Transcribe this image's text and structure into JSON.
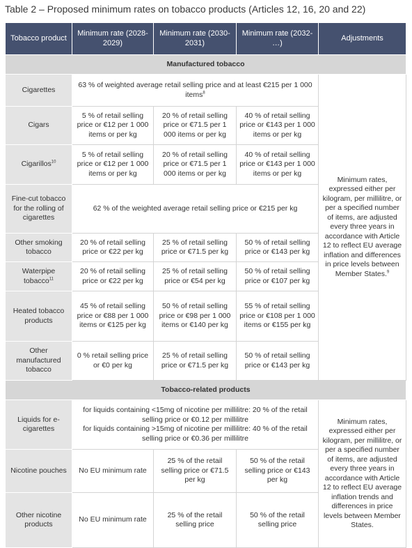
{
  "title": "Table 2 – Proposed minimum rates on tobacco products (Articles 12, 16, 20 and 22)",
  "table": {
    "header": [
      "Tobacco product",
      "Minimum rate (2028-2029)",
      "Minimum rate (2030-2031)",
      "Minimum rate (2032- …)",
      "Adjustments"
    ],
    "sections": [
      {
        "heading": "Manufactured tobacco",
        "adjustments": "Minimum rates, expressed either per kilogram, per millilitre, or per a specified number of items, are adjusted every three years in accordance with Article 12 to reflect EU average inflation and differences in price levels between Member States.",
        "adjustments_note": "9",
        "rows": [
          {
            "product": "Cigarettes",
            "cells": [
              {
                "text": [
                  "63 % of weighted average retail selling price and at least €215 per 1 000 items"
                ],
                "note": "8"
              }
            ]
          },
          {
            "product": "Cigars",
            "cells": [
              {
                "text": [
                  "5 % of retail selling price or €12 per 1 000 items or per kg"
                ]
              },
              {
                "text": [
                  "20 % of retail selling price or €71.5 per 1 000 items or per kg"
                ]
              },
              {
                "text": [
                  "40 % of retail selling price or €143 per 1 000 items or per kg"
                ]
              }
            ]
          },
          {
            "product": "Cigarillos",
            "product_note": "10",
            "cells": [
              {
                "text": [
                  "5 % of retail selling price or €12 per 1 000 items or per kg"
                ]
              },
              {
                "text": [
                  "20 % of retail selling price or €71.5 per 1 000 items or per kg"
                ]
              },
              {
                "text": [
                  "40 % of retail selling price or €143 per 1 000 items or per kg"
                ]
              }
            ]
          },
          {
            "product": "Fine-cut tobacco for the rolling of cigarettes",
            "cells": [
              {
                "text": [
                  "62 % of the weighted average retail selling price or €215 per kg"
                ]
              }
            ]
          },
          {
            "product": "Other smoking tobacco",
            "cells": [
              {
                "text": [
                  "20 % of retail selling price or €22 per kg"
                ]
              },
              {
                "text": [
                  "25 % of retail selling price or €71.5 per kg"
                ]
              },
              {
                "text": [
                  "50 % of retail selling price or €143 per kg"
                ]
              }
            ]
          },
          {
            "product": "Waterpipe tobacco",
            "product_note": "11",
            "cells": [
              {
                "text": [
                  "20 % of retail selling price or €22 per kg"
                ]
              },
              {
                "text": [
                  "25 % of retail selling price or €54 per kg"
                ]
              },
              {
                "text": [
                  "50 % of retail selling price or €107 per kg"
                ]
              }
            ]
          },
          {
            "product": "Heated tobacco products",
            "cells": [
              {
                "text": [
                  "45 % of retail selling price or €88 per 1 000 items or €125 per kg"
                ]
              },
              {
                "text": [
                  "50 % of retail selling price or €98 per 1 000 items or €140 per kg"
                ]
              },
              {
                "text": [
                  "55 % of retail selling price or €108 per 1 000 items or €155 per kg"
                ]
              }
            ]
          },
          {
            "product": "Other manufactured tobacco",
            "cells": [
              {
                "text": [
                  "0 % retail selling price or €0 per kg"
                ]
              },
              {
                "text": [
                  "25 % of retail selling price or €71.5 per kg"
                ]
              },
              {
                "text": [
                  "50 % of retail selling price or €143 per kg"
                ]
              }
            ]
          }
        ]
      },
      {
        "heading": "Tobacco-related products",
        "adjustments": "Minimum rates, expressed either per kilogram, per millilitre, or per a specified number of items, are adjusted every three years in accordance with Article 12 to reflect EU average inflation trends and differences in price levels between Member States.",
        "rows": [
          {
            "product": "Liquids for e-cigarettes",
            "cells": [
              {
                "text": [
                  "for liquids containing <15mg of nicotine per millilitre: 20 % of the retail selling price or €0.12 per millilitre",
                  "for liquids containing >15mg of nicotine per millilitre: 40 % of the retail selling price or €0.36 per millilitre"
                ]
              }
            ]
          },
          {
            "product": "Nicotine pouches",
            "cells": [
              {
                "text": [
                  "No EU minimum rate"
                ]
              },
              {
                "text": [
                  "25 % of the retail selling price or €71.5 per kg"
                ]
              },
              {
                "text": [
                  "50 % of the retail selling price or €143 per kg"
                ]
              }
            ]
          },
          {
            "product": "Other nicotine products",
            "cells": [
              {
                "text": [
                  "No EU minimum rate"
                ]
              },
              {
                "text": [
                  "25 % of the retail selling price"
                ]
              },
              {
                "text": [
                  "50 % of the retail selling price"
                ]
              }
            ]
          }
        ]
      }
    ]
  }
}
